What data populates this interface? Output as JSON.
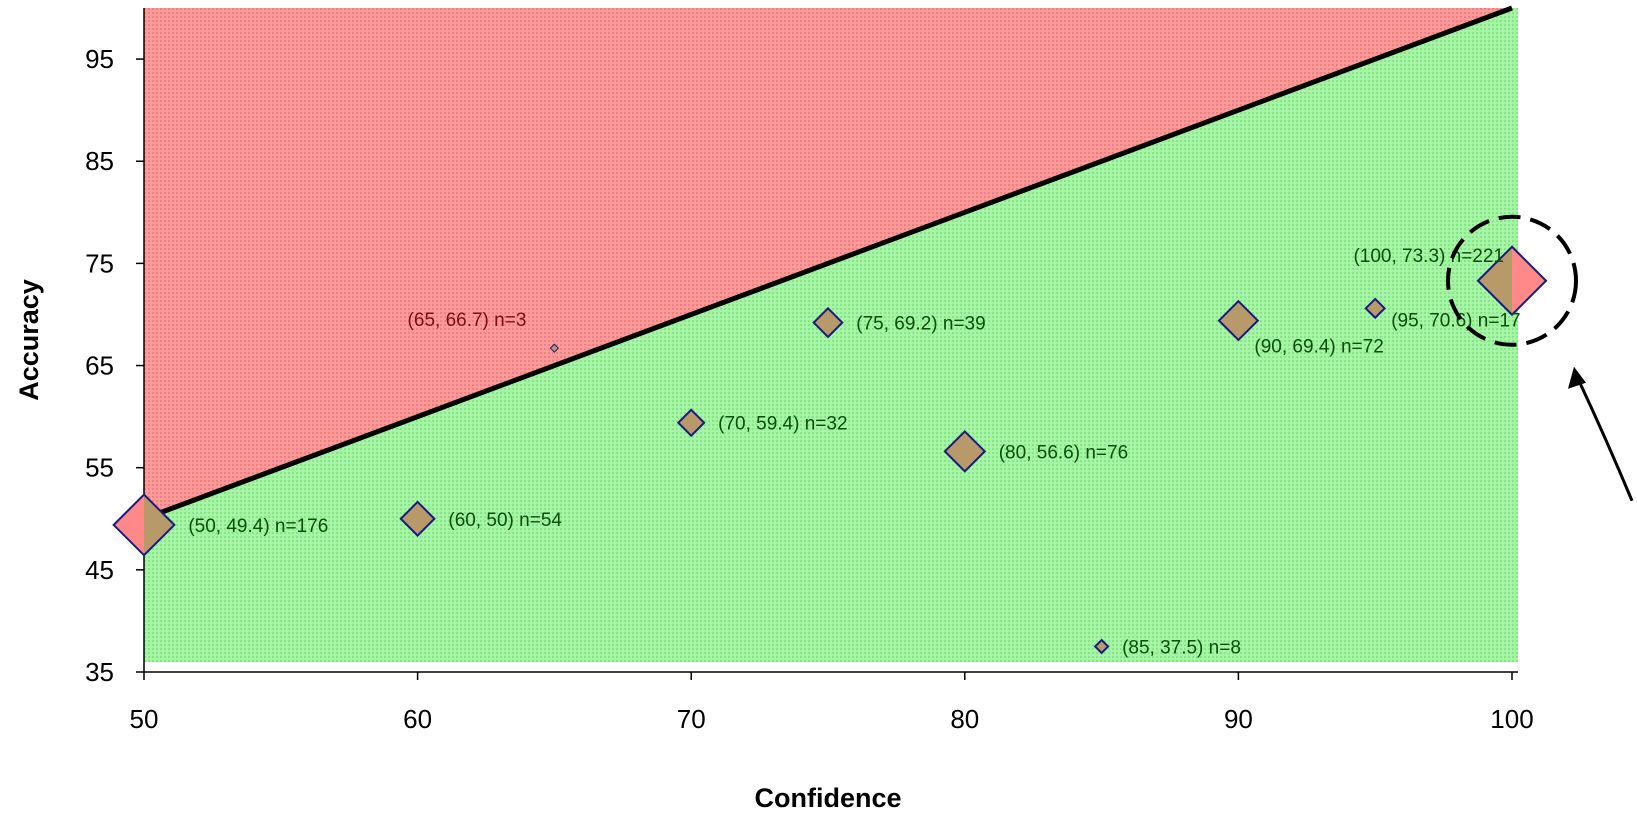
{
  "chart_data": {
    "type": "scatter",
    "title": "",
    "xlabel": "Confidence",
    "ylabel": "Accuracy",
    "xlim": [
      50,
      100
    ],
    "ylim": [
      35,
      100
    ],
    "x_ticks": [
      "50",
      "60",
      "70",
      "80",
      "90",
      "100"
    ],
    "y_ticks": [
      "35",
      "45",
      "55",
      "65",
      "75",
      "85",
      "95"
    ],
    "reference_line": {
      "from": [
        50,
        50
      ],
      "to": [
        100,
        100
      ]
    },
    "regions": {
      "above_diagonal_color": "#ff8c8c",
      "below_diagonal_color": "#8cf08c"
    },
    "grid": false,
    "legend": "none",
    "points": [
      {
        "x": 50,
        "y": 49.4,
        "n": 176,
        "label": "(50, 49.4) n=176"
      },
      {
        "x": 60,
        "y": 50,
        "n": 54,
        "label": "(60, 50) n=54"
      },
      {
        "x": 65,
        "y": 66.7,
        "n": 3,
        "label": "(65, 66.7) n=3"
      },
      {
        "x": 70,
        "y": 59.4,
        "n": 32,
        "label": "(70, 59.4) n=32"
      },
      {
        "x": 75,
        "y": 69.2,
        "n": 39,
        "label": "(75, 69.2) n=39"
      },
      {
        "x": 80,
        "y": 56.6,
        "n": 76,
        "label": "(80, 56.6) n=76"
      },
      {
        "x": 85,
        "y": 37.5,
        "n": 8,
        "label": "(85, 37.5) n=8"
      },
      {
        "x": 90,
        "y": 69.4,
        "n": 72,
        "label": "(90, 69.4) n=72"
      },
      {
        "x": 95,
        "y": 70.6,
        "n": 17,
        "label": "(95, 70.6) n=17"
      },
      {
        "x": 100,
        "y": 73.3,
        "n": 221,
        "label": "(100, 73.3) n=221"
      }
    ],
    "highlight": {
      "x": 100,
      "y": 73.3,
      "style": "dashed-circle"
    },
    "colors": {
      "marker_fill": "#b89a6a",
      "marker_stroke": "#1a1a80",
      "marker_fill_overlap": "#ff8888",
      "label_on_red": "#7a1010",
      "label_on_green": "#0b4d0b",
      "diagonal": "#000000"
    }
  }
}
